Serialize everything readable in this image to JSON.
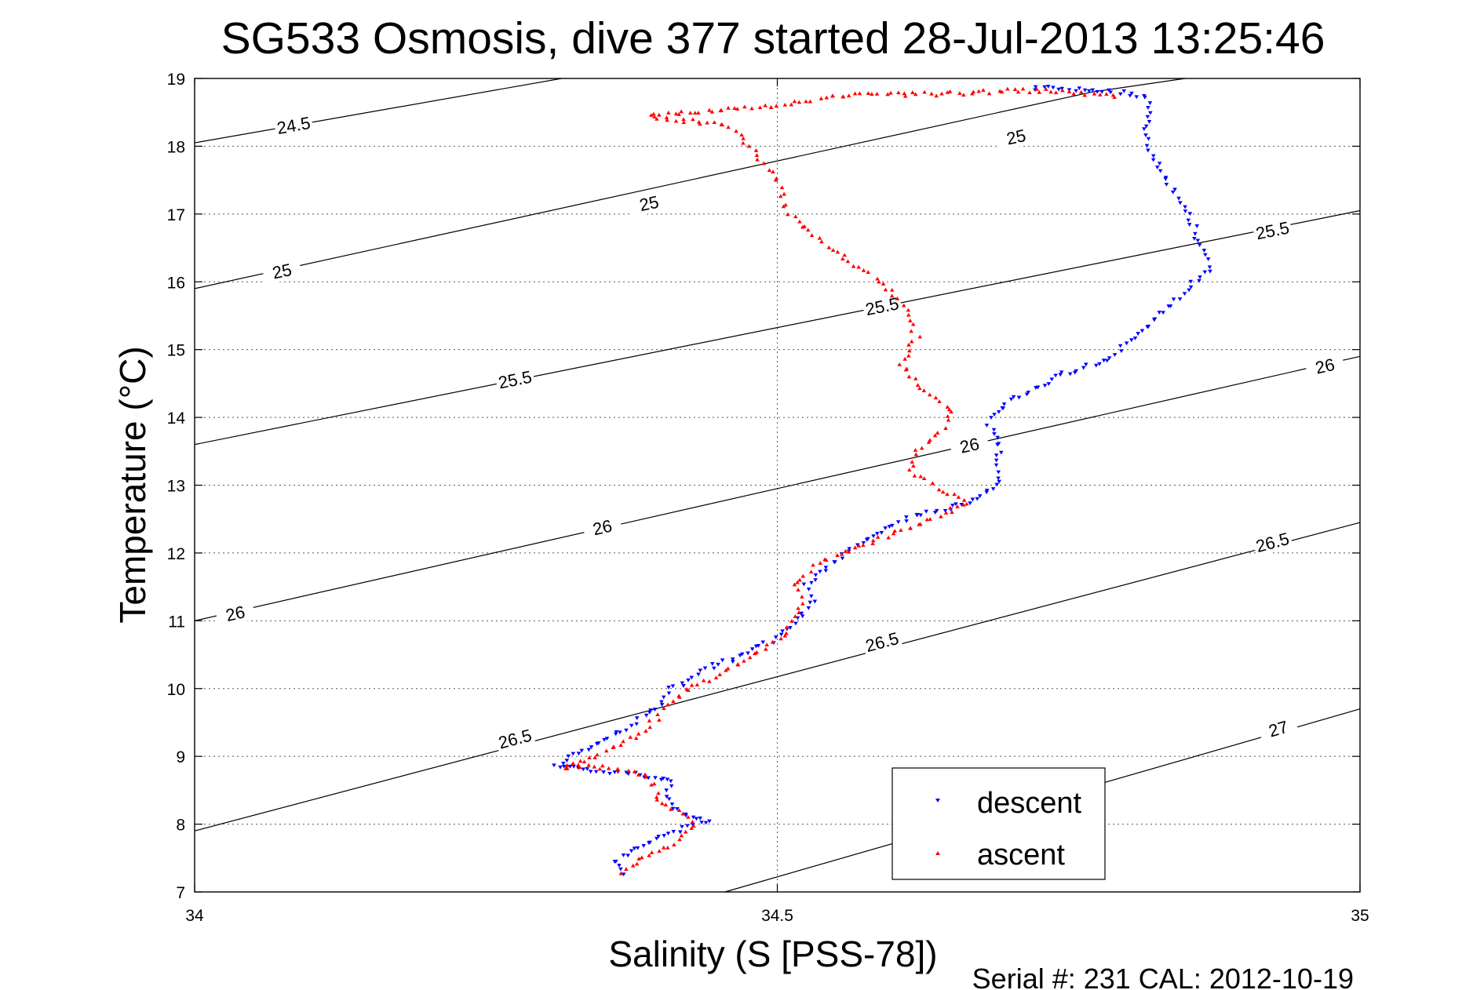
{
  "chart_data": {
    "type": "scatter",
    "title": "SG533 Osmosis, dive 377 started 28-Jul-2013 13:25:46",
    "xlabel": "Salinity (S [PSS-78])",
    "ylabel": "Temperature (°C)",
    "xlim": [
      34,
      35
    ],
    "ylim": [
      7,
      19
    ],
    "xticks": [
      34,
      34.5,
      35
    ],
    "xtick_labels": [
      "34",
      "34.5",
      "35"
    ],
    "yticks": [
      7,
      8,
      9,
      10,
      11,
      12,
      13,
      14,
      15,
      16,
      17,
      18,
      19
    ],
    "ytick_labels": [
      "7",
      "8",
      "9",
      "10",
      "11",
      "12",
      "13",
      "14",
      "15",
      "16",
      "17",
      "18",
      "19"
    ],
    "grid": true,
    "legend_position": "bottom-right",
    "footer": "Serial #: 231  CAL: 2012-10-19",
    "density_contours": [
      {
        "level": "24.5",
        "line": [
          [
            34.0,
            18.05
          ],
          [
            34.315,
            19.0
          ]
        ],
        "labels": [
          {
            "x": 34.085,
            "y": 18.3
          }
        ]
      },
      {
        "level": "25",
        "line": [
          [
            34.0,
            15.9
          ],
          [
            34.77,
            18.8
          ],
          [
            34.85,
            19.0
          ]
        ],
        "labels": [
          {
            "x": 34.075,
            "y": 16.15
          },
          {
            "x": 34.39,
            "y": 17.15
          },
          {
            "x": 34.705,
            "y": 18.13
          }
        ]
      },
      {
        "level": "25.5",
        "line": [
          [
            34.0,
            13.6
          ],
          [
            35.0,
            17.05
          ]
        ],
        "labels": [
          {
            "x": 34.275,
            "y": 14.55
          },
          {
            "x": 34.59,
            "y": 15.63
          },
          {
            "x": 34.925,
            "y": 16.75
          }
        ]
      },
      {
        "level": "26",
        "line": [
          [
            34.0,
            11.0
          ],
          [
            35.0,
            14.9
          ]
        ],
        "labels": [
          {
            "x": 34.035,
            "y": 11.1
          },
          {
            "x": 34.35,
            "y": 12.37
          },
          {
            "x": 34.665,
            "y": 13.58
          },
          {
            "x": 34.97,
            "y": 14.75
          }
        ]
      },
      {
        "level": "26.5",
        "line": [
          [
            34.0,
            7.9
          ],
          [
            35.0,
            12.45
          ]
        ],
        "labels": [
          {
            "x": 34.275,
            "y": 9.25
          },
          {
            "x": 34.59,
            "y": 10.68
          },
          {
            "x": 34.925,
            "y": 12.15
          }
        ]
      },
      {
        "level": "27",
        "line": [
          [
            34.455,
            7.0
          ],
          [
            35.0,
            9.7
          ]
        ],
        "labels": [
          {
            "x": 34.93,
            "y": 9.4
          }
        ]
      }
    ],
    "series": [
      {
        "name": "descent",
        "color": "#0000ff",
        "marker": "triangle-down",
        "path": [
          [
            34.72,
            18.85
          ],
          [
            34.735,
            18.86
          ],
          [
            34.77,
            18.82
          ],
          [
            34.8,
            18.78
          ],
          [
            34.82,
            18.7
          ],
          [
            34.815,
            18.2
          ],
          [
            34.82,
            17.9
          ],
          [
            34.855,
            16.9
          ],
          [
            34.87,
            16.2
          ],
          [
            34.84,
            15.7
          ],
          [
            34.815,
            15.3
          ],
          [
            34.785,
            14.85
          ],
          [
            34.74,
            14.6
          ],
          [
            34.7,
            14.25
          ],
          [
            34.68,
            13.95
          ],
          [
            34.69,
            13.6
          ],
          [
            34.69,
            13.35
          ],
          [
            34.69,
            13.0
          ],
          [
            34.66,
            12.72
          ],
          [
            34.61,
            12.5
          ],
          [
            34.565,
            12.1
          ],
          [
            34.545,
            11.8
          ],
          [
            34.525,
            11.55
          ],
          [
            34.53,
            11.3
          ],
          [
            34.52,
            11.05
          ],
          [
            34.5,
            10.75
          ],
          [
            34.47,
            10.5
          ],
          [
            34.435,
            10.25
          ],
          [
            34.41,
            10.0
          ],
          [
            34.395,
            9.7
          ],
          [
            34.375,
            9.45
          ],
          [
            34.35,
            9.2
          ],
          [
            34.32,
            9.0
          ],
          [
            34.31,
            8.85
          ],
          [
            34.35,
            8.78
          ],
          [
            34.385,
            8.72
          ],
          [
            34.41,
            8.65
          ],
          [
            34.405,
            8.45
          ],
          [
            34.41,
            8.25
          ],
          [
            34.42,
            8.15
          ],
          [
            34.44,
            8.05
          ],
          [
            34.415,
            7.9
          ],
          [
            34.385,
            7.7
          ],
          [
            34.36,
            7.45
          ],
          [
            34.37,
            7.28
          ]
        ],
        "count": 300
      },
      {
        "name": "ascent",
        "color": "#ff0000",
        "marker": "triangle-up",
        "path": [
          [
            34.365,
            7.3
          ],
          [
            34.385,
            7.5
          ],
          [
            34.41,
            7.7
          ],
          [
            34.43,
            7.95
          ],
          [
            34.415,
            8.2
          ],
          [
            34.395,
            8.35
          ],
          [
            34.395,
            8.55
          ],
          [
            34.385,
            8.72
          ],
          [
            34.36,
            8.82
          ],
          [
            34.33,
            8.87
          ],
          [
            34.315,
            8.82
          ],
          [
            34.35,
            9.05
          ],
          [
            34.385,
            9.35
          ],
          [
            34.4,
            9.65
          ],
          [
            34.42,
            9.95
          ],
          [
            34.45,
            10.2
          ],
          [
            34.475,
            10.45
          ],
          [
            34.5,
            10.7
          ],
          [
            34.515,
            11.0
          ],
          [
            34.52,
            11.25
          ],
          [
            34.515,
            11.55
          ],
          [
            34.535,
            11.85
          ],
          [
            34.58,
            12.15
          ],
          [
            34.625,
            12.45
          ],
          [
            34.665,
            12.75
          ],
          [
            34.64,
            12.95
          ],
          [
            34.615,
            13.2
          ],
          [
            34.62,
            13.5
          ],
          [
            34.64,
            13.8
          ],
          [
            34.65,
            14.1
          ],
          [
            34.625,
            14.4
          ],
          [
            34.605,
            14.8
          ],
          [
            34.62,
            15.2
          ],
          [
            34.61,
            15.6
          ],
          [
            34.59,
            16.0
          ],
          [
            34.545,
            16.5
          ],
          [
            34.51,
            17.0
          ],
          [
            34.5,
            17.5
          ],
          [
            34.48,
            17.9
          ],
          [
            34.46,
            18.3
          ],
          [
            34.39,
            18.45
          ],
          [
            34.5,
            18.6
          ],
          [
            34.55,
            18.75
          ],
          [
            34.65,
            18.78
          ],
          [
            34.7,
            18.82
          ],
          [
            34.74,
            18.82
          ],
          [
            34.79,
            18.75
          ]
        ],
        "count": 330
      }
    ]
  },
  "legend": {
    "descent": "descent",
    "ascent": "ascent"
  }
}
